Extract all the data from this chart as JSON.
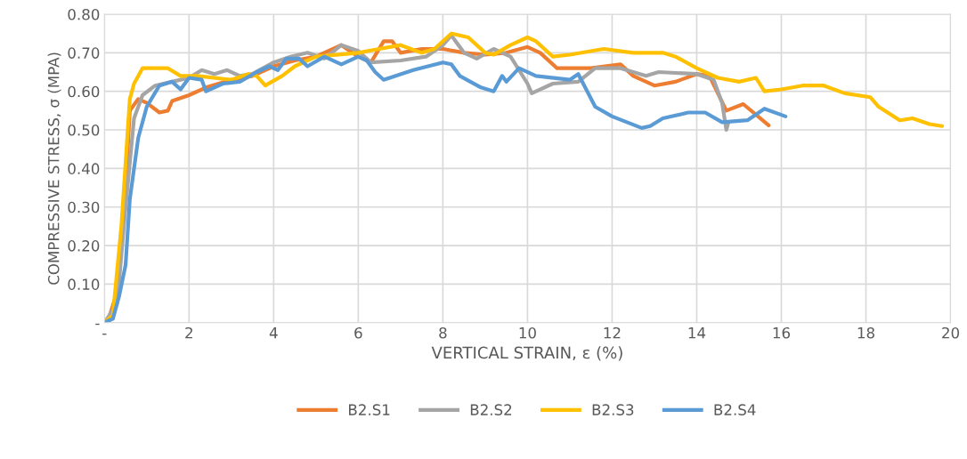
{
  "chart_data": {
    "type": "line",
    "xlabel": "VERTICAL STRAIN, ε (%)",
    "ylabel": "COMPRESSIVE STRESS, σ (MPA)",
    "xlim": [
      0,
      20
    ],
    "ylim": [
      0,
      0.8
    ],
    "xticks": [
      {
        "value": 0,
        "label": "-"
      },
      2,
      4,
      6,
      8,
      10,
      12,
      14,
      16,
      18,
      20
    ],
    "yticks": [
      {
        "value": 0,
        "label": "-"
      },
      {
        "value": 0.1,
        "label": "0.10"
      },
      {
        "value": 0.2,
        "label": "0.20"
      },
      {
        "value": 0.3,
        "label": "0.30"
      },
      {
        "value": 0.4,
        "label": "0.40"
      },
      {
        "value": 0.5,
        "label": "0.50"
      },
      {
        "value": 0.6,
        "label": "0.60"
      },
      {
        "value": 0.7,
        "label": "0.70"
      },
      {
        "value": 0.8,
        "label": "0.80"
      }
    ],
    "grid": true,
    "legend": "bottom",
    "marker": "none",
    "line_style": "solid",
    "series": [
      {
        "name": "B2.S1",
        "color": "#ed7d31",
        "x": [
          0,
          0.1,
          0.3,
          0.5,
          0.6,
          0.8,
          1.0,
          1.3,
          1.5,
          1.6,
          2,
          2.4,
          3,
          3.5,
          4,
          4.5,
          5,
          5.6,
          6,
          6.3,
          6.6,
          6.8,
          7,
          7.5,
          8,
          8.5,
          9,
          9.5,
          10,
          10.3,
          10.7,
          11.5,
          12.2,
          12.5,
          13,
          13.5,
          14,
          14.3,
          14.7,
          15.1,
          15.7
        ],
        "values": [
          0,
          0.01,
          0.08,
          0.35,
          0.55,
          0.58,
          0.57,
          0.545,
          0.55,
          0.575,
          0.59,
          0.61,
          0.63,
          0.64,
          0.665,
          0.68,
          0.69,
          0.72,
          0.69,
          0.675,
          0.73,
          0.73,
          0.7,
          0.71,
          0.71,
          0.7,
          0.695,
          0.7,
          0.715,
          0.7,
          0.66,
          0.66,
          0.67,
          0.64,
          0.615,
          0.625,
          0.645,
          0.64,
          0.55,
          0.567,
          0.512
        ]
      },
      {
        "name": "B2.S2",
        "color": "#a5a5a5",
        "x": [
          0,
          0.3,
          0.5,
          0.7,
          0.9,
          1.2,
          1.6,
          2,
          2.3,
          2.6,
          2.9,
          3.2,
          3.5,
          4,
          4.4,
          4.8,
          5.2,
          5.6,
          6,
          6.3,
          7,
          7.6,
          8,
          8.2,
          8.5,
          8.8,
          9.2,
          9.6,
          10,
          10.1,
          10.6,
          11.2,
          11.6,
          12.2,
          12.8,
          13.1,
          14,
          14.4,
          14.6,
          14.7,
          14.75
        ],
        "values": [
          0,
          0.05,
          0.3,
          0.53,
          0.59,
          0.615,
          0.625,
          0.635,
          0.655,
          0.645,
          0.655,
          0.64,
          0.645,
          0.675,
          0.69,
          0.7,
          0.685,
          0.72,
          0.705,
          0.675,
          0.68,
          0.69,
          0.72,
          0.745,
          0.7,
          0.685,
          0.71,
          0.69,
          0.62,
          0.595,
          0.62,
          0.625,
          0.66,
          0.66,
          0.64,
          0.65,
          0.645,
          0.63,
          0.57,
          0.5,
          0.52
        ]
      },
      {
        "name": "B2.S3",
        "color": "#ffc000",
        "x": [
          0,
          0.2,
          0.4,
          0.6,
          0.7,
          0.9,
          1.5,
          1.8,
          2.2,
          3,
          3.4,
          3.6,
          3.8,
          4.2,
          4.5,
          5,
          6,
          6.5,
          7,
          7.5,
          7.8,
          8.2,
          8.6,
          9,
          9.2,
          9.6,
          10,
          10.2,
          10.6,
          11,
          11.8,
          12.5,
          13.2,
          13.5,
          14,
          14.5,
          15,
          15.4,
          15.6,
          16,
          16.5,
          17,
          17.5,
          18.1,
          18.3,
          18.8,
          19.1,
          19.5,
          19.8
        ],
        "values": [
          0,
          0.02,
          0.25,
          0.58,
          0.62,
          0.66,
          0.66,
          0.64,
          0.64,
          0.63,
          0.645,
          0.64,
          0.615,
          0.64,
          0.665,
          0.69,
          0.7,
          0.71,
          0.72,
          0.7,
          0.71,
          0.75,
          0.74,
          0.7,
          0.695,
          0.72,
          0.74,
          0.73,
          0.69,
          0.695,
          0.71,
          0.7,
          0.7,
          0.69,
          0.66,
          0.635,
          0.625,
          0.635,
          0.6,
          0.605,
          0.615,
          0.615,
          0.595,
          0.585,
          0.56,
          0.525,
          0.53,
          0.515,
          0.51
        ]
      },
      {
        "name": "B2.S4",
        "color": "#5b9bd5",
        "x": [
          0,
          0.2,
          0.35,
          0.5,
          0.6,
          0.8,
          1,
          1.3,
          1.6,
          1.8,
          2,
          2.3,
          2.4,
          2.8,
          3.2,
          3.6,
          3.9,
          4.1,
          4.3,
          4.6,
          4.8,
          5.2,
          5.6,
          6,
          6.2,
          6.4,
          6.6,
          7.3,
          8,
          8.2,
          8.4,
          8.9,
          9.2,
          9.4,
          9.5,
          9.8,
          10.2,
          11,
          11.2,
          11.6,
          12,
          12.7,
          12.9,
          13.2,
          13.8,
          14.2,
          14.6,
          15.2,
          15.6,
          16.1
        ],
        "values": [
          0,
          0.01,
          0.07,
          0.15,
          0.32,
          0.48,
          0.56,
          0.615,
          0.625,
          0.605,
          0.635,
          0.63,
          0.6,
          0.62,
          0.625,
          0.65,
          0.665,
          0.655,
          0.685,
          0.685,
          0.665,
          0.69,
          0.67,
          0.69,
          0.68,
          0.65,
          0.63,
          0.655,
          0.675,
          0.67,
          0.64,
          0.61,
          0.6,
          0.64,
          0.625,
          0.66,
          0.64,
          0.63,
          0.645,
          0.56,
          0.535,
          0.505,
          0.51,
          0.53,
          0.545,
          0.545,
          0.52,
          0.525,
          0.555,
          0.535
        ]
      }
    ]
  }
}
